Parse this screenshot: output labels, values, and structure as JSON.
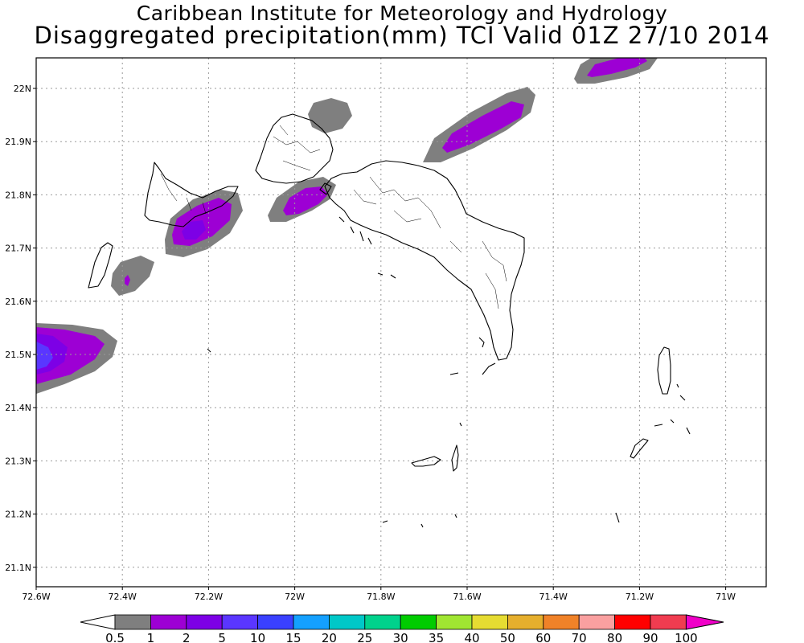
{
  "header": {
    "line1": "Caribbean Institute for Meteorology and Hydrology",
    "line2": "Disaggregated precipitation(mm) TCI Valid 01Z 27/10 2014"
  },
  "map": {
    "lat_labels": [
      "22N",
      "21.9N",
      "21.8N",
      "21.7N",
      "21.6N",
      "21.5N",
      "21.4N",
      "21.3N",
      "21.2N",
      "21.1N"
    ],
    "lon_labels": [
      "72.6W",
      "72.4W",
      "72.2W",
      "72W",
      "71.8W",
      "71.6W",
      "71.4W",
      "71.2W",
      "71W"
    ],
    "grid": true,
    "land_fill": "#ffffff",
    "coast_color": "#000000"
  },
  "colorbar": {
    "labels": [
      "0.5",
      "1",
      "2",
      "5",
      "10",
      "15",
      "20",
      "25",
      "30",
      "35",
      "40",
      "50",
      "60",
      "70",
      "80",
      "90",
      "100"
    ],
    "colors": [
      "#ffffff",
      "#7f7f7f",
      "#9d00d4",
      "#7d00e6",
      "#5a36ff",
      "#3a40ff",
      "#14a0ff",
      "#00c8c8",
      "#00d28c",
      "#00cc00",
      "#a0e632",
      "#e6dc32",
      "#e6af2d",
      "#f08228",
      "#faa0a0",
      "#ff0000",
      "#f03c50",
      "#f000c8"
    ]
  }
}
